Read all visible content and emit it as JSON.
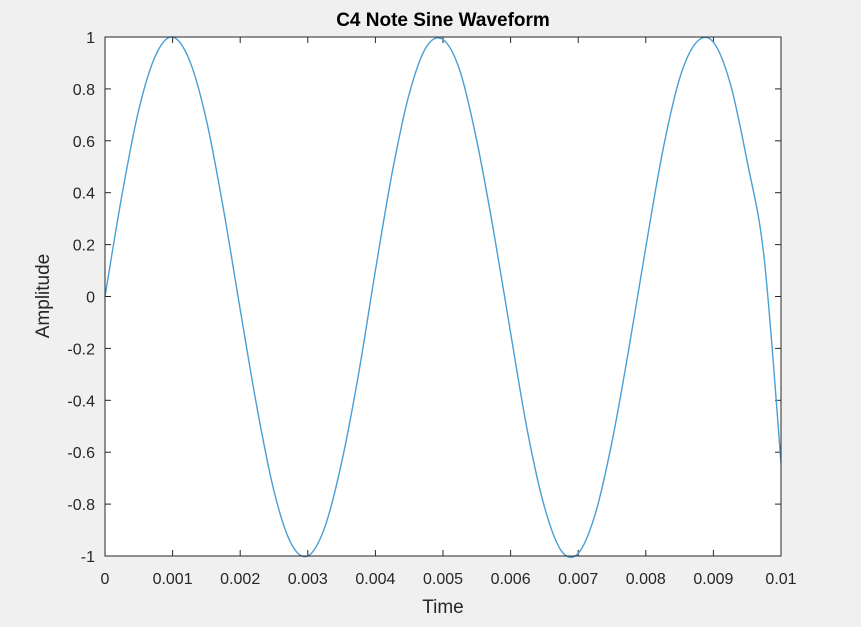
{
  "chart_data": {
    "type": "line",
    "title": "C4 Note Sine Waveform",
    "xlabel": "Time",
    "ylabel": "Amplitude",
    "xlim": [
      0,
      0.01
    ],
    "ylim": [
      -1,
      1
    ],
    "grid": false,
    "xticks": [
      0,
      0.001,
      0.002,
      0.003,
      0.004,
      0.005,
      0.006,
      0.007,
      0.008,
      0.009,
      0.01
    ],
    "xtick_labels": [
      "0",
      "0.001",
      "0.002",
      "0.003",
      "0.004",
      "0.005",
      "0.006",
      "0.007",
      "0.008",
      "0.009",
      "0.01"
    ],
    "yticks": [
      1,
      0.8,
      0.6,
      0.4,
      0.2,
      0,
      -0.2,
      -0.4,
      -0.6,
      -0.8,
      -1
    ],
    "ytick_labels": [
      "1",
      "0.8",
      "0.6",
      "0.4",
      "0.2",
      "0",
      "-0.2",
      "-0.4",
      "-0.6",
      "-0.8",
      "-1"
    ],
    "series": [
      {
        "color": "#4a9fd4",
        "x": [
          0,
          0.00025,
          0.0005,
          0.00075,
          0.001,
          0.00125,
          0.0015,
          0.00175,
          0.002,
          0.00225,
          0.0025,
          0.00275,
          0.003,
          0.00325,
          0.0035,
          0.00375,
          0.004,
          0.00425,
          0.0045,
          0.00475,
          0.005,
          0.00525,
          0.0055,
          0.00575,
          0.006,
          0.00625,
          0.0065,
          0.00675,
          0.007,
          0.00725,
          0.0075,
          0.00775,
          0.008,
          0.00825,
          0.0085,
          0.00875,
          0.009,
          0.00925,
          0.0095,
          0.00975,
          0.01
        ],
        "y": [
          0,
          0.39,
          0.72,
          0.93,
          1.0,
          0.91,
          0.68,
          0.34,
          -0.05,
          -0.43,
          -0.75,
          -0.95,
          -1.0,
          -0.89,
          -0.64,
          -0.3,
          0.1,
          0.48,
          0.78,
          0.96,
          0.99,
          0.87,
          0.6,
          0.25,
          -0.14,
          -0.52,
          -0.81,
          -0.98,
          -0.99,
          -0.84,
          -0.56,
          -0.2,
          0.19,
          0.56,
          0.84,
          0.98,
          0.98,
          0.82,
          0.52,
          0.15,
          -0.64
        ]
      }
    ]
  }
}
